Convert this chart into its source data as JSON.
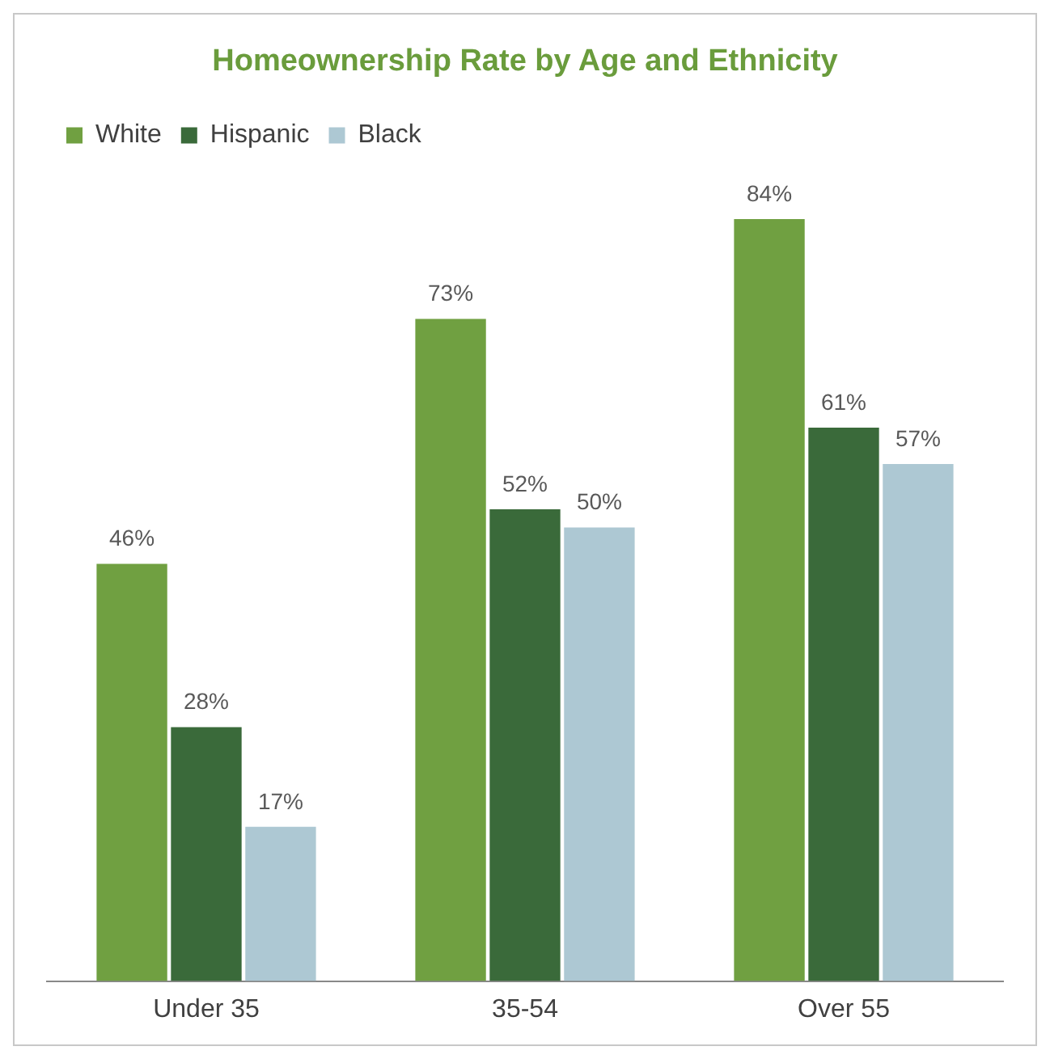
{
  "chart_data": {
    "type": "bar",
    "title": "Homeownership Rate by Age and Ethnicity",
    "categories": [
      "Under 35",
      "35-54",
      "Over 55"
    ],
    "series": [
      {
        "name": "White",
        "color": "#70a041",
        "values": [
          46,
          73,
          84
        ],
        "value_labels": [
          "46%",
          "73%",
          "84%"
        ]
      },
      {
        "name": "Hispanic",
        "color": "#3a6a3a",
        "values": [
          28,
          52,
          61
        ],
        "value_labels": [
          "28%",
          "52%",
          "61%"
        ]
      },
      {
        "name": "Black",
        "color": "#adc8d3",
        "values": [
          17,
          50,
          57
        ],
        "value_labels": [
          "17%",
          "50%",
          "57%"
        ]
      }
    ],
    "legend": "top left",
    "grid": false
  }
}
